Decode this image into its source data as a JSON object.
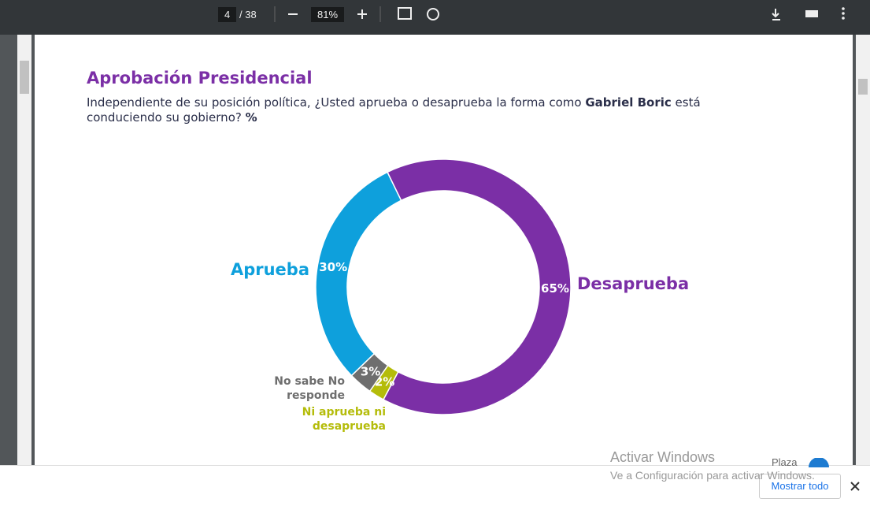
{
  "viewer": {
    "page": "4",
    "page_total": "/ 38",
    "zoom": "81%"
  },
  "chart_data": {
    "type": "donut",
    "title": "Aprobación Presidencial",
    "subtitle_parts": [
      "Independiente de su posición política, ¿Usted aprueba o desaprueba la forma como ",
      "Gabriel Boric",
      " está conduciendo su gobierno? ",
      "%"
    ],
    "categories": [
      "Desaprueba",
      "Ni aprueba ni desaprueba",
      "No sabe No responde",
      "Aprueba"
    ],
    "values": [
      65,
      2,
      3,
      30
    ],
    "value_labels": [
      "65%",
      "2%",
      "3%",
      "30%"
    ],
    "colors": [
      "#7b2fa6",
      "#b4bc0a",
      "#6e6e6e",
      "#0ea0dc"
    ]
  },
  "watermark": {
    "title": "Activar Windows",
    "text": "Ve a Configuración para activar Windows."
  },
  "download_bar": {
    "item": "Plaza",
    "button": "Mostrar todo"
  }
}
